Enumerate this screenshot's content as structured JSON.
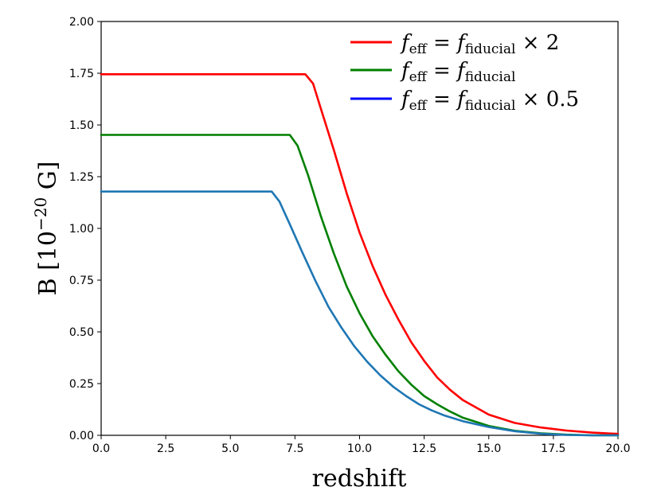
{
  "chart_data": {
    "type": "line",
    "title": "",
    "xlabel": "redshift",
    "ylabel": "B",
    "ylabel_unit": "[10",
    "ylabel_exp": "−20",
    "ylabel_unit_end": " G]",
    "xlim": [
      0,
      20
    ],
    "ylim": [
      0,
      2.0
    ],
    "grid": false,
    "legend_position": "top-right",
    "xticks": [
      "0.0",
      "2.5",
      "5.0",
      "7.5",
      "10.0",
      "12.5",
      "15.0",
      "17.5",
      "20.0"
    ],
    "yticks": [
      "0.00",
      "0.25",
      "0.50",
      "0.75",
      "1.00",
      "1.25",
      "1.50",
      "1.75",
      "2.00"
    ],
    "legend": [
      {
        "f": "f",
        "eff": "eff",
        "eq": " = ",
        "fid": "fiducial",
        "suffix": " × 2",
        "color": "#ff0000"
      },
      {
        "f": "f",
        "eff": "eff",
        "eq": " = ",
        "fid": "fiducial",
        "suffix": "",
        "color": "#008000"
      },
      {
        "f": "f",
        "eff": "eff",
        "eq": " = ",
        "fid": "fiducial",
        "suffix": " × 0.5",
        "color": "#0000ff"
      }
    ],
    "series": [
      {
        "name": "f_eff = f_fiducial × 2",
        "color": "#ff0000",
        "x": [
          0,
          7.9,
          8.2,
          8.5,
          9.0,
          9.5,
          10.0,
          10.5,
          11.0,
          11.5,
          12.0,
          12.5,
          13.0,
          13.5,
          14.0,
          15.0,
          16.0,
          17.0,
          18.0,
          19.0,
          20.0
        ],
        "y": [
          1.745,
          1.745,
          1.7,
          1.58,
          1.38,
          1.17,
          0.98,
          0.82,
          0.68,
          0.56,
          0.45,
          0.36,
          0.28,
          0.22,
          0.17,
          0.1,
          0.06,
          0.038,
          0.023,
          0.013,
          0.007
        ]
      },
      {
        "name": "f_eff = f_fiducial",
        "color": "#008000",
        "x": [
          0,
          7.3,
          7.6,
          8.0,
          8.5,
          9.0,
          9.5,
          10.0,
          10.5,
          11.0,
          11.5,
          12.0,
          12.5,
          13.0,
          13.5,
          14.0,
          15.0,
          16.0,
          17.0,
          18.0,
          19.0,
          20.0
        ],
        "y": [
          1.452,
          1.452,
          1.4,
          1.26,
          1.06,
          0.88,
          0.72,
          0.59,
          0.48,
          0.39,
          0.31,
          0.245,
          0.19,
          0.15,
          0.115,
          0.085,
          0.045,
          0.022,
          0.01,
          0.003,
          0.0,
          0.0
        ]
      },
      {
        "name": "f_eff = f_fiducial × 0.5",
        "color": "#1f77b4",
        "x": [
          0,
          6.6,
          6.9,
          7.3,
          7.8,
          8.3,
          8.8,
          9.3,
          9.8,
          10.3,
          10.8,
          11.3,
          11.8,
          12.3,
          12.8,
          13.3,
          14.0,
          15.0,
          16.0,
          17.0,
          18.0,
          19.0,
          20.0
        ],
        "y": [
          1.178,
          1.178,
          1.13,
          1.02,
          0.88,
          0.745,
          0.62,
          0.52,
          0.43,
          0.355,
          0.29,
          0.235,
          0.19,
          0.15,
          0.12,
          0.095,
          0.068,
          0.04,
          0.02,
          0.008,
          0.002,
          0.0,
          0.0
        ]
      }
    ]
  }
}
